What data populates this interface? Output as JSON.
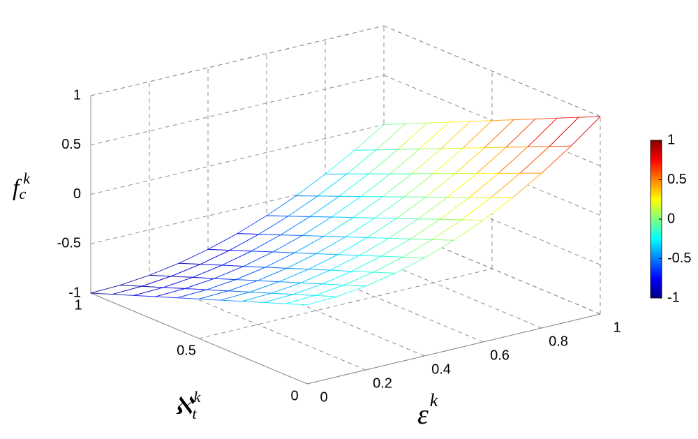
{
  "chart_data": {
    "type": "mesh",
    "x": [
      0,
      0.1,
      0.2,
      0.3,
      0.4,
      0.5,
      0.6,
      0.7,
      0.8,
      0.9,
      1
    ],
    "y": [
      0,
      0.1,
      0.2,
      0.3,
      0.4,
      0.5,
      0.6,
      0.7,
      0.8,
      0.9,
      1
    ],
    "z": [
      [
        -0.2,
        -0.188,
        -0.152,
        -0.092,
        -0.008,
        0.1,
        0.232,
        0.388,
        0.568,
        0.772,
        1.0
      ],
      [
        -0.28,
        -0.268,
        -0.233,
        -0.174,
        -0.091,
        0.015,
        0.145,
        0.298,
        0.475,
        0.676,
        0.9
      ],
      [
        -0.36,
        -0.348,
        -0.314,
        -0.256,
        -0.174,
        -0.07,
        0.058,
        0.208,
        0.382,
        0.58,
        0.8
      ],
      [
        -0.44,
        -0.429,
        -0.394,
        -0.337,
        -0.258,
        -0.155,
        -0.03,
        0.119,
        0.29,
        0.483,
        0.7
      ],
      [
        -0.52,
        -0.509,
        -0.475,
        -0.419,
        -0.341,
        -0.24,
        -0.117,
        0.029,
        0.197,
        0.387,
        0.6
      ],
      [
        -0.6,
        -0.589,
        -0.556,
        -0.501,
        -0.424,
        -0.325,
        -0.204,
        -0.061,
        0.104,
        0.291,
        0.5
      ],
      [
        -0.68,
        -0.669,
        -0.637,
        -0.583,
        -0.507,
        -0.41,
        -0.291,
        -0.151,
        0.011,
        0.195,
        0.4
      ],
      [
        -0.76,
        -0.749,
        -0.718,
        -0.665,
        -0.59,
        -0.495,
        -0.378,
        -0.241,
        -0.082,
        0.099,
        0.3
      ],
      [
        -0.84,
        -0.83,
        -0.798,
        -0.746,
        -0.674,
        -0.58,
        -0.466,
        -0.33,
        -0.174,
        0.002,
        0.2
      ],
      [
        -0.92,
        -0.91,
        -0.879,
        -0.828,
        -0.757,
        -0.665,
        -0.553,
        -0.42,
        -0.267,
        -0.094,
        0.1
      ],
      [
        -1,
        -0.99,
        -0.96,
        -0.91,
        -0.84,
        -0.75,
        -0.64,
        -0.51,
        -0.36,
        -0.19,
        0
      ]
    ],
    "xlim": [
      0,
      1
    ],
    "ylim": [
      0,
      1
    ],
    "zlim": [
      -1,
      1
    ],
    "xticks": [
      0,
      0.2,
      0.4,
      0.6,
      0.8,
      1
    ],
    "yticks": [
      0,
      0.5,
      1
    ],
    "zticks": [
      -1,
      -0.5,
      0,
      0.5,
      1
    ],
    "xlabel": {
      "base": "ε",
      "sup": "k"
    },
    "ylabel": {
      "base": "ℵ",
      "sub": "t",
      "sup": "k"
    },
    "zlabel": {
      "base": "f",
      "sub": "c",
      "sup": "k"
    },
    "colormap": "jet",
    "clim": [
      -1,
      1
    ],
    "cticks": [
      -1,
      -0.5,
      0,
      0.5,
      1
    ],
    "grid": true
  }
}
